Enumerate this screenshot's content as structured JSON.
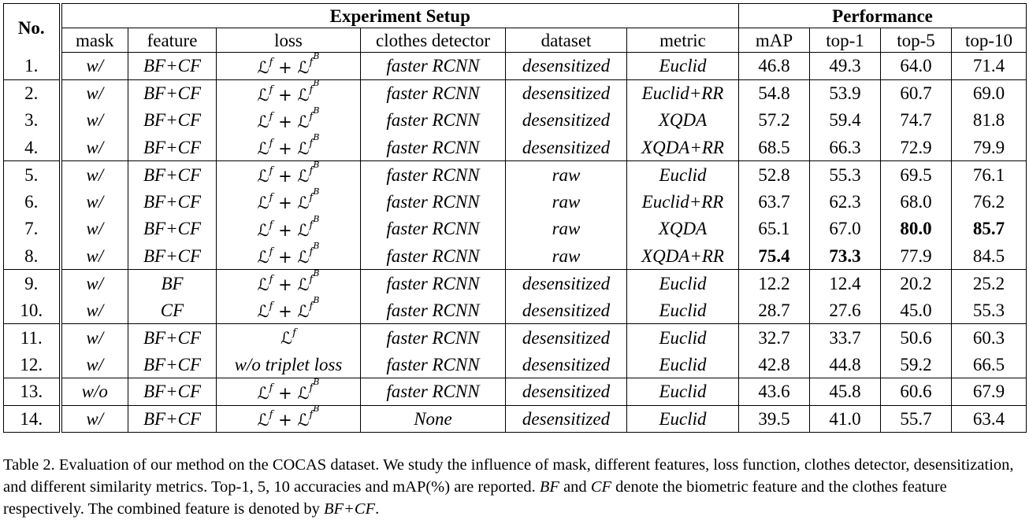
{
  "header": {
    "no": "No.",
    "group_setup": "Experiment Setup",
    "group_perf": "Performance",
    "cols": [
      "mask",
      "feature",
      "loss",
      "clothes detector",
      "dataset",
      "metric",
      "mAP",
      "top-1",
      "top-5",
      "top-10"
    ]
  },
  "rows": [
    {
      "no": "1.",
      "mask": "w/",
      "feature": "BF+CF",
      "loss": "Lf+LfB",
      "detector": "faster RCNN",
      "dataset": "desensitized",
      "metric": "Euclid",
      "map": "46.8",
      "top1": "49.3",
      "top5": "64.0",
      "top10": "71.4"
    },
    {
      "no": "2.",
      "mask": "w/",
      "feature": "BF+CF",
      "loss": "Lf+LfB",
      "detector": "faster RCNN",
      "dataset": "desensitized",
      "metric": "Euclid+RR",
      "map": "54.8",
      "top1": "53.9",
      "top5": "60.7",
      "top10": "69.0"
    },
    {
      "no": "3.",
      "mask": "w/",
      "feature": "BF+CF",
      "loss": "Lf+LfB",
      "detector": "faster RCNN",
      "dataset": "desensitized",
      "metric": "XQDA",
      "map": "57.2",
      "top1": "59.4",
      "top5": "74.7",
      "top10": "81.8"
    },
    {
      "no": "4.",
      "mask": "w/",
      "feature": "BF+CF",
      "loss": "Lf+LfB",
      "detector": "faster RCNN",
      "dataset": "desensitized",
      "metric": "XQDA+RR",
      "map": "68.5",
      "top1": "66.3",
      "top5": "72.9",
      "top10": "79.9"
    },
    {
      "no": "5.",
      "mask": "w/",
      "feature": "BF+CF",
      "loss": "Lf+LfB",
      "detector": "faster RCNN",
      "dataset": "raw",
      "metric": "Euclid",
      "map": "52.8",
      "top1": "55.3",
      "top5": "69.5",
      "top10": "76.1"
    },
    {
      "no": "6.",
      "mask": "w/",
      "feature": "BF+CF",
      "loss": "Lf+LfB",
      "detector": "faster RCNN",
      "dataset": "raw",
      "metric": "Euclid+RR",
      "map": "63.7",
      "top1": "62.3",
      "top5": "68.0",
      "top10": "76.2"
    },
    {
      "no": "7.",
      "mask": "w/",
      "feature": "BF+CF",
      "loss": "Lf+LfB",
      "detector": "faster RCNN",
      "dataset": "raw",
      "metric": "XQDA",
      "map": "65.1",
      "top1": "67.0",
      "top5": "80.0",
      "top10": "85.7"
    },
    {
      "no": "8.",
      "mask": "w/",
      "feature": "BF+CF",
      "loss": "Lf+LfB",
      "detector": "faster RCNN",
      "dataset": "raw",
      "metric": "XQDA+RR",
      "map": "75.4",
      "top1": "73.3",
      "top5": "77.9",
      "top10": "84.5"
    },
    {
      "no": "9.",
      "mask": "w/",
      "feature": "BF",
      "loss": "Lf+LfB",
      "detector": "faster RCNN",
      "dataset": "desensitized",
      "metric": "Euclid",
      "map": "12.2",
      "top1": "12.4",
      "top5": "20.2",
      "top10": "25.2"
    },
    {
      "no": "10.",
      "mask": "w/",
      "feature": "CF",
      "loss": "Lf+LfB",
      "detector": "faster RCNN",
      "dataset": "desensitized",
      "metric": "Euclid",
      "map": "28.7",
      "top1": "27.6",
      "top5": "45.0",
      "top10": "55.3"
    },
    {
      "no": "11.",
      "mask": "w/",
      "feature": "BF+CF",
      "loss": "Lf",
      "detector": "faster RCNN",
      "dataset": "desensitized",
      "metric": "Euclid",
      "map": "32.7",
      "top1": "33.7",
      "top5": "50.6",
      "top10": "60.3"
    },
    {
      "no": "12.",
      "mask": "w/",
      "feature": "BF+CF",
      "loss": "w/o triplet loss",
      "detector": "faster RCNN",
      "dataset": "desensitized",
      "metric": "Euclid",
      "map": "42.8",
      "top1": "44.8",
      "top5": "59.2",
      "top10": "66.5"
    },
    {
      "no": "13.",
      "mask": "w/o",
      "feature": "BF+CF",
      "loss": "Lf+LfB",
      "detector": "faster RCNN",
      "dataset": "desensitized",
      "metric": "Euclid",
      "map": "43.6",
      "top1": "45.8",
      "top5": "60.6",
      "top10": "67.9"
    },
    {
      "no": "14.",
      "mask": "w/",
      "feature": "BF+CF",
      "loss": "Lf+LfB",
      "detector": "None",
      "dataset": "desensitized",
      "metric": "Euclid",
      "map": "39.5",
      "top1": "41.0",
      "top5": "55.7",
      "top10": "63.4"
    }
  ],
  "bold_cells": [
    {
      "row": 6,
      "col": "top5"
    },
    {
      "row": 6,
      "col": "top10"
    },
    {
      "row": 7,
      "col": "map"
    },
    {
      "row": 7,
      "col": "top1"
    }
  ],
  "group_breaks_before_rows": [
    1,
    4,
    8,
    10,
    12,
    13
  ],
  "loss_math": {
    "L": "ℒ",
    "f": "f",
    "plus": " + ",
    "B": "B"
  },
  "caption": {
    "label": "Table 2.",
    "part1": " Evaluation of our method on the COCAS dataset. We study the influence of mask, different features, loss function, clothes detector, desensitization, and different similarity metrics. Top-1, 5, 10 accuracies and mAP(%) are reported. ",
    "bf": "BF",
    "part2": " and ",
    "cf": "CF",
    "part3": " denote the biometric feature and the clothes feature respectively. The combined feature is denoted by ",
    "bfcf": "BF+CF",
    "part4": "."
  }
}
